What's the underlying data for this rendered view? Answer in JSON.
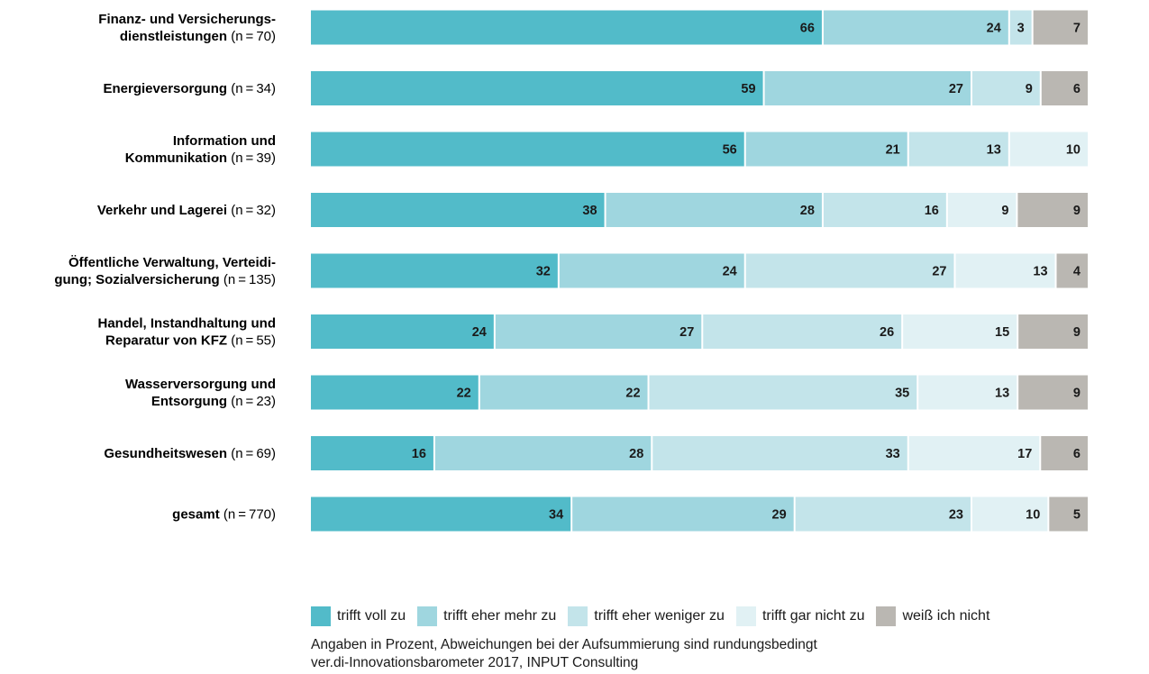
{
  "colors": {
    "trifft_voll_zu": "#52bbc9",
    "trifft_eher_mehr_zu": "#9fd6df",
    "trifft_eher_weniger_zu": "#c3e4ea",
    "trifft_gar_nicht_zu": "#e1f1f4",
    "weiss_ich_nicht": "#bab7b2"
  },
  "chart_data": {
    "type": "bar",
    "orientation": "horizontal",
    "stacked": true,
    "title": "",
    "xlabel": "",
    "ylabel": "",
    "xlim": [
      0,
      100
    ],
    "grid": false,
    "legend_position": "bottom",
    "categories": [
      {
        "lines": [
          [
            "Finanz- und Versicherungs-",
            ""
          ],
          [
            "dienstleistungen",
            "(n = 70)"
          ]
        ]
      },
      {
        "lines": [
          [
            "Energieversorgung",
            "(n = 34)"
          ]
        ]
      },
      {
        "lines": [
          [
            "Information und",
            ""
          ],
          [
            "Kommunikation",
            "(n = 39)"
          ]
        ]
      },
      {
        "lines": [
          [
            "Verkehr und Lagerei",
            "(n = 32)"
          ]
        ]
      },
      {
        "lines": [
          [
            "Öffentliche Verwaltung, Verteidi-",
            ""
          ],
          [
            "gung; Sozialversicherung",
            "(n = 135)"
          ]
        ]
      },
      {
        "lines": [
          [
            "Handel, Instandhaltung und",
            ""
          ],
          [
            "Reparatur von KFZ",
            "(n = 55)"
          ]
        ]
      },
      {
        "lines": [
          [
            "Wasserversorgung und",
            ""
          ],
          [
            "Entsorgung",
            "(n = 23)"
          ]
        ]
      },
      {
        "lines": [
          [
            "Gesundheitswesen",
            "(n = 69)"
          ]
        ]
      },
      {
        "lines": [
          [
            "gesamt",
            "(n = 770)"
          ]
        ]
      }
    ],
    "series": [
      {
        "name": "trifft voll zu",
        "color_key": "trifft_voll_zu",
        "values": [
          66,
          59,
          56,
          38,
          32,
          24,
          22,
          16,
          34
        ]
      },
      {
        "name": "trifft eher mehr zu",
        "color_key": "trifft_eher_mehr_zu",
        "values": [
          24,
          27,
          21,
          28,
          24,
          27,
          22,
          28,
          29
        ]
      },
      {
        "name": "trifft eher weniger zu",
        "color_key": "trifft_eher_weniger_zu",
        "values": [
          3,
          9,
          13,
          16,
          27,
          26,
          35,
          33,
          23
        ]
      },
      {
        "name": "trifft gar nicht zu",
        "color_key": "trifft_gar_nicht_zu",
        "values": [
          0,
          0,
          10,
          9,
          13,
          15,
          13,
          17,
          10
        ]
      },
      {
        "name": "weiß ich nicht",
        "color_key": "weiss_ich_nicht",
        "values": [
          7,
          6,
          0,
          9,
          4,
          9,
          9,
          6,
          5
        ]
      }
    ]
  },
  "notes": {
    "line1": "Angaben in Prozent, Abweichungen bei der Aufsummierung sind rundungsbedingt",
    "line2": "ver.di-Innovationsbarometer 2017, INPUT Consulting"
  }
}
